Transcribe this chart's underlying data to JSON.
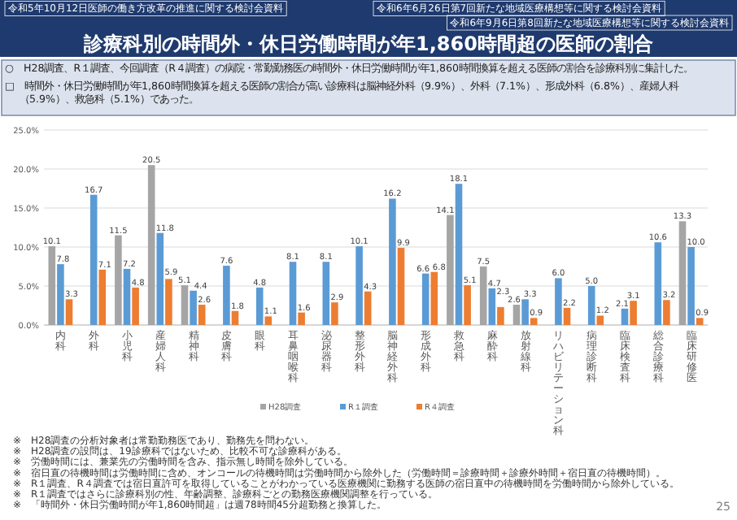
{
  "chart_data": {
    "type": "bar",
    "title": "診療科別の時間外・休日労働時間が年1,860時間超の医師の割合",
    "annotations": [
      "令和5年10月12日医師の働き方改革の推進に関する検討会資料",
      "令和6年6月26日第7回新たな地域医療構想等に関する検討会資料",
      "令和6年9月6日第8回新たな地域医療構想等に関する検討会資料",
      "○　H28調査、R１調査、今回調査（R４調査）の病院・常勤勤務医の時間外・休日労働時間が年1,860時間換算を超える医師の割合を診療科別に集計した。",
      "□　時間外・休日労働時間が年1,860時間換算を超える医師の割合が高い診療科は脳神経外科（9.9%）、外科（7.1%）、形成外科（6.8%）、産婦人科（5.9%）、救急科（5.1%）であった。",
      "※　H28調査の分析対象者は常勤勤務医であり、勤務先を問わない。",
      "※　H28調査の設問は、19診療科ではないため、比較不可な診療科がある。",
      "※　労働時間には、兼業先の労働時間を含み、指示無し時間を除外している。",
      "※　宿日直の待機時間は労働時間に含め、オンコールの待機時間は労働時間から除外した（労働時間＝診療時間＋診療外時間＋宿日直の待機時間）。",
      "※　R１調査、R４調査では宿日直許可を取得していることがわかっている医療機関に勤務する医師の宿日直中の待機時間を労働時間から除外している。",
      "※　R１調査ではさらに診療科別の性、年齢調整、診療科ごとの勤務医療機関調整を行っている。",
      "※　「時間外・休日労働時間が年1,860時間超」は週78時間45分超勤務と換算した。",
      "25"
    ],
    "categories": [
      "内科",
      "外科",
      "小児科",
      "産婦人科",
      "精神科",
      "皮膚科",
      "眼科",
      "耳鼻咽喉科",
      "泌尿器科",
      "整形外科",
      "脳神経外科",
      "形成外科",
      "救急科",
      "麻酔科",
      "放射線科",
      "リハビリテーション科",
      "病理診断科",
      "臨床検査科",
      "総合診療科",
      "臨床研修医"
    ],
    "series": [
      {
        "name": "H28調査",
        "color": "#a5a5a5",
        "values": [
          10.1,
          null,
          11.5,
          20.5,
          5.1,
          null,
          null,
          null,
          null,
          null,
          null,
          null,
          14.1,
          7.5,
          2.6,
          null,
          null,
          null,
          null,
          13.3
        ],
        "value_labels": [
          "10.1",
          null,
          "11.5",
          "20.5",
          "5.1",
          null,
          null,
          null,
          null,
          null,
          null,
          null,
          "14.1",
          "7.5",
          "2.6",
          null,
          null,
          null,
          null,
          "13.3"
        ]
      },
      {
        "name": "R１調査",
        "color": "#5b9bd5",
        "values": [
          7.8,
          16.7,
          7.2,
          11.8,
          4.4,
          7.6,
          4.8,
          8.1,
          8.1,
          10.1,
          16.2,
          6.6,
          18.1,
          4.7,
          3.3,
          6.0,
          5.0,
          2.1,
          10.6,
          10.0
        ],
        "value_labels": [
          "7.8",
          "16.7",
          "7.2",
          "11.8",
          "4.4",
          "7.6",
          "4.8",
          "8.1",
          "8.1",
          "10.1",
          "16.2",
          "6.6",
          "18.1",
          "4.7",
          "3.3",
          "6.0",
          "5.0",
          "2.1",
          "10.6",
          "10.0"
        ]
      },
      {
        "name": "R４調査",
        "color": "#ed7d31",
        "values": [
          3.3,
          7.1,
          4.8,
          5.9,
          2.6,
          1.8,
          1.1,
          1.6,
          2.9,
          4.3,
          9.9,
          6.8,
          5.1,
          2.3,
          0.9,
          2.2,
          1.2,
          3.1,
          3.2,
          0.9
        ],
        "value_labels": [
          "3.3",
          "7.1",
          "4.8",
          "5.9",
          "2.6",
          "1.8",
          "1.1",
          "1.6",
          "2.9",
          "4.3",
          "9.9",
          "6.8",
          "5.1",
          "2.3",
          "0.9",
          "2.2",
          "1.2",
          "3.1",
          "3.2",
          "0.9"
        ]
      }
    ],
    "ylim": [
      0,
      25
    ],
    "yticks": [
      {
        "value": 0,
        "label": "0.0%"
      },
      {
        "value": 5,
        "label": "5.0%"
      },
      {
        "value": 10,
        "label": "10.0%"
      },
      {
        "value": 15,
        "label": "15.0%"
      },
      {
        "value": 20,
        "label": "20.0%"
      },
      {
        "value": 25,
        "label": "25.0%"
      }
    ],
    "grid": "y",
    "legend": "bottom"
  }
}
